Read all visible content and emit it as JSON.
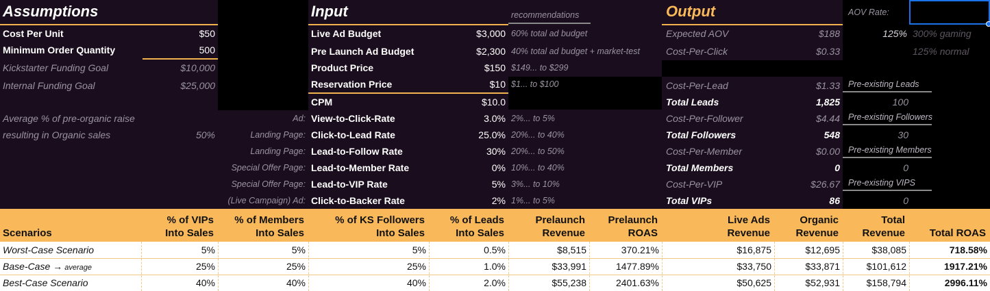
{
  "assumptions": {
    "title": "Assumptions",
    "rows": [
      {
        "label": "Cost Per Unit",
        "value": "$50"
      },
      {
        "label": "Minimum Order Quantity",
        "value": "500"
      },
      {
        "label": "Kickstarter Funding Goal",
        "value": "$10,000"
      },
      {
        "label": "Internal Funding Goal",
        "value": "$25,000"
      }
    ],
    "organic_label_1": "Average % of pre-organic raise",
    "organic_label_2": "resulting in Organic sales",
    "organic_value": "50%"
  },
  "input": {
    "title": "Input",
    "recommendations_header": "recommendations",
    "rows": [
      {
        "prefix": "",
        "label": "Live Ad Budget",
        "value": "$3,000",
        "rec": "60% total ad budget"
      },
      {
        "prefix": "",
        "label": "Pre Launch Ad Budget",
        "value": "$2,300",
        "rec": "40% total ad budget + market-test"
      },
      {
        "prefix": "",
        "label": "Product Price",
        "value": "$150",
        "rec": "$149... to $299"
      },
      {
        "prefix": "",
        "label": "Reservation Price",
        "value": "$10",
        "rec": "$1... to $100"
      },
      {
        "prefix": "",
        "label": "CPM",
        "value": "$10.0",
        "rec": ""
      },
      {
        "prefix": "Ad:",
        "label": "View-to-Click-Rate",
        "value": "3.0%",
        "rec": "2%... to 5%"
      },
      {
        "prefix": "Landing Page:",
        "label": "Click-to-Lead Rate",
        "value": "25.0%",
        "rec": "20%... to 40%"
      },
      {
        "prefix": "Landing Page:",
        "label": "Lead-to-Follow Rate",
        "value": "30%",
        "rec": "20%... to 50%"
      },
      {
        "prefix": "Special Offer Page:",
        "label": "Lead-to-Member Rate",
        "value": "0%",
        "rec": "10%... to 40%"
      },
      {
        "prefix": "Special Offer Page:",
        "label": "Lead-to-VIP Rate",
        "value": "5%",
        "rec": "3%... to 10%"
      },
      {
        "prefix": "(Live Campaign) Ad:",
        "label": "Click-to-Backer Rate",
        "value": "2%",
        "rec": "1%... to 5%"
      }
    ]
  },
  "output": {
    "title": "Output",
    "aov_rate_label": "AOV Rate:",
    "aov_rate_value": "125%",
    "aov_note_1": "300% gaming",
    "aov_note_2": "125% normal",
    "rows": [
      {
        "label": "Expected AOV",
        "value": "$188",
        "bold": false
      },
      {
        "label": "Cost-Per-Click",
        "value": "$0.33",
        "bold": false
      },
      {
        "label": "Cost-Per-Lead",
        "value": "$1.33",
        "bold": false
      },
      {
        "label": "Total Leads",
        "value": "1,825",
        "bold": true
      },
      {
        "label": "Cost-Per-Follower",
        "value": "$4.44",
        "bold": false
      },
      {
        "label": "Total Followers",
        "value": "548",
        "bold": true
      },
      {
        "label": "Cost-Per-Member",
        "value": "$0.00",
        "bold": false
      },
      {
        "label": "Total Members",
        "value": "0",
        "bold": true
      },
      {
        "label": "Cost-Per-VIP",
        "value": "$26.67",
        "bold": false
      },
      {
        "label": "Total VIPs",
        "value": "86",
        "bold": true
      }
    ],
    "preexisting": [
      {
        "label": "Pre-existing Leads",
        "value": "100"
      },
      {
        "label": "Pre-existing Followers",
        "value": "30"
      },
      {
        "label": "Pre-existing Members",
        "value": "0"
      },
      {
        "label": "Pre-existing VIPS",
        "value": "0"
      }
    ]
  },
  "scenarios": {
    "headers": [
      [
        "",
        "Scenarios"
      ],
      [
        "% of VIPs",
        "Into Sales"
      ],
      [
        "% of Members",
        "Into Sales"
      ],
      [
        "% of KS Followers",
        "Into Sales"
      ],
      [
        "% of Leads",
        "Into Sales"
      ],
      [
        "Prelaunch",
        "Revenue"
      ],
      [
        "Prelaunch",
        "ROAS"
      ],
      [
        "Live Ads",
        "Revenue"
      ],
      [
        "Organic",
        "Revenue"
      ],
      [
        "Total",
        "Revenue"
      ],
      [
        "",
        "Total ROAS"
      ]
    ],
    "rows": [
      {
        "name": "Worst-Case Scenario",
        "suffix": "",
        "values": [
          "5%",
          "5%",
          "5%",
          "0.5%",
          "$8,515",
          "370.21%",
          "$16,875",
          "$12,695",
          "$38,085",
          "718.58%"
        ]
      },
      {
        "name": "Base-Case →",
        "suffix": "average",
        "values": [
          "25%",
          "25%",
          "25%",
          "1.0%",
          "$33,991",
          "1477.89%",
          "$33,750",
          "$33,871",
          "$101,612",
          "1917.21%"
        ]
      },
      {
        "name": "Best-Case Scenario",
        "suffix": "",
        "values": [
          "40%",
          "40%",
          "40%",
          "2.0%",
          "$55,238",
          "2401.63%",
          "$50,625",
          "$52,931",
          "$158,794",
          "2996.11%"
        ]
      }
    ]
  },
  "colors": {
    "dark_bg": "#1a0d1d",
    "accent": "#f9b95a",
    "title_accent": "#f4b24f"
  }
}
